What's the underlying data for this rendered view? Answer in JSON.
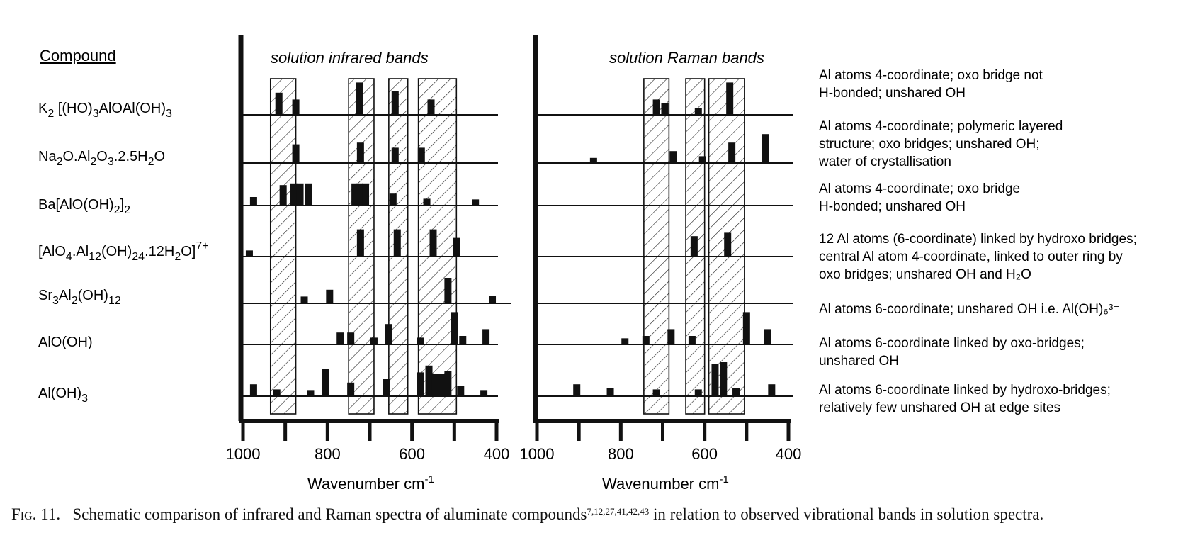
{
  "figure": {
    "compound_header": "Compound",
    "left_panel_title": "solution infrared bands",
    "right_panel_title": "solution Raman bands",
    "x_label_left": "Wavenumber cm",
    "x_label_right": "Wavenumber cm",
    "x_label_sup": "-1",
    "caption_lead": "Fig. 11.",
    "caption_body": "Schematic comparison of infrared and Raman spectra of aluminate compounds",
    "caption_refs": "7,12,27,41,42,43",
    "caption_tail": " in relation to observed vibrational bands in solution spectra."
  },
  "compounds": [
    {
      "formula": [
        [
          "K",
          ""
        ],
        [
          "2",
          "sub"
        ],
        [
          " [(HO)",
          ""
        ],
        [
          "3",
          "sub"
        ],
        [
          "AlOAl(OH)",
          ""
        ],
        [
          "3",
          "sub"
        ]
      ],
      "description": [
        "Al atoms 4-coordinate; oxo bridge not",
        "H-bonded; unshared OH"
      ]
    },
    {
      "formula": [
        [
          "Na",
          ""
        ],
        [
          "2",
          "sub"
        ],
        [
          "O.Al",
          ""
        ],
        [
          "2",
          "sub"
        ],
        [
          "O",
          ""
        ],
        [
          "3",
          "sub"
        ],
        [
          ".2.5H",
          ""
        ],
        [
          "2",
          "sub"
        ],
        [
          "O",
          ""
        ]
      ],
      "description": [
        "Al atoms 4-coordinate; polymeric layered",
        "structure; oxo bridges; unshared OH;",
        "water of crystallisation"
      ]
    },
    {
      "formula": [
        [
          "Ba[AlO(OH)",
          ""
        ],
        [
          "2",
          "sub"
        ],
        [
          "]",
          ""
        ],
        [
          "2",
          "sub"
        ]
      ],
      "description": [
        "Al atoms 4-coordinate; oxo bridge",
        "H-bonded; unshared OH"
      ]
    },
    {
      "formula": [
        [
          "[AlO",
          ""
        ],
        [
          "4",
          "sub"
        ],
        [
          ".Al",
          ""
        ],
        [
          "12",
          "sub"
        ],
        [
          "(OH)",
          ""
        ],
        [
          "24",
          "sub"
        ],
        [
          ".12H",
          ""
        ],
        [
          "2",
          "sub"
        ],
        [
          "O]",
          ""
        ],
        [
          "7+",
          "sup"
        ]
      ],
      "description": [
        "12 Al atoms (6-coordinate) linked by hydroxo bridges;",
        "central Al atom 4-coordinate, linked to outer ring by",
        "oxo bridges; unshared OH and H₂O"
      ]
    },
    {
      "formula": [
        [
          "Sr",
          ""
        ],
        [
          "3",
          "sub"
        ],
        [
          "Al",
          ""
        ],
        [
          "2",
          "sub"
        ],
        [
          "(OH)",
          ""
        ],
        [
          "12",
          "sub"
        ]
      ],
      "description": [
        "Al atoms 6-coordinate; unshared OH i.e. Al(OH)₆³⁻"
      ]
    },
    {
      "formula": [
        [
          "AlO(OH)",
          ""
        ]
      ],
      "description": [
        "Al atoms 6-coordinate linked by oxo-bridges;",
        "unshared OH"
      ]
    },
    {
      "formula": [
        [
          "Al(OH)",
          ""
        ],
        [
          "3",
          "sub"
        ]
      ],
      "description": [
        "Al atoms 6-coordinate linked by hydroxo-bridges;",
        "relatively few unshared OH at edge sites"
      ]
    }
  ],
  "chart_data": [
    {
      "type": "bar",
      "title": "solution infrared bands",
      "xlabel": "Wavenumber cm-1",
      "xlim": [
        1000,
        400
      ],
      "xticks": [
        1000,
        800,
        600,
        400
      ],
      "value_units": "relative intensity (0-1)",
      "hatched_bands": [
        [
          935,
          875
        ],
        [
          750,
          690
        ],
        [
          655,
          610
        ],
        [
          585,
          495
        ]
      ],
      "series": [
        {
          "name": "K2 [(HO)3AlOAl(OH)3]",
          "bands": [
            [
              915,
              0.65
            ],
            [
              875,
              0.45
            ],
            [
              725,
              0.95
            ],
            [
              640,
              0.7
            ],
            [
              555,
              0.45
            ]
          ]
        },
        {
          "name": "Na2O.Al2O3.2.5H2O",
          "bands": [
            [
              875,
              0.55
            ],
            [
              722,
              0.6
            ],
            [
              640,
              0.45
            ],
            [
              578,
              0.45
            ]
          ]
        },
        {
          "name": "Ba[AlO(OH)2]2",
          "bands": [
            [
              975,
              0.25
            ],
            [
              905,
              0.6
            ],
            [
              880,
              0.65
            ],
            [
              865,
              0.65
            ],
            [
              845,
              0.65
            ],
            [
              735,
              0.65
            ],
            [
              725,
              0.65
            ],
            [
              710,
              0.65
            ],
            [
              645,
              0.35
            ],
            [
              565,
              0.2
            ],
            [
              450,
              0.18
            ]
          ]
        },
        {
          "name": "[AlO4.Al12(OH)24.12H2O]7+",
          "bands": [
            [
              985,
              0.18
            ],
            [
              722,
              0.8
            ],
            [
              635,
              0.8
            ],
            [
              550,
              0.8
            ],
            [
              495,
              0.55
            ]
          ]
        },
        {
          "name": "Sr3Al2(OH)12",
          "bands": [
            [
              855,
              0.2
            ],
            [
              795,
              0.4
            ],
            [
              515,
              0.75
            ],
            [
              410,
              0.22
            ]
          ]
        },
        {
          "name": "AlO(OH)",
          "bands": [
            [
              770,
              0.35
            ],
            [
              745,
              0.35
            ],
            [
              690,
              0.2
            ],
            [
              655,
              0.6
            ],
            [
              580,
              0.2
            ],
            [
              500,
              0.95
            ],
            [
              480,
              0.25
            ],
            [
              425,
              0.45
            ]
          ]
        },
        {
          "name": "Al(OH)3",
          "bands": [
            [
              975,
              0.35
            ],
            [
              920,
              0.2
            ],
            [
              840,
              0.18
            ],
            [
              805,
              0.8
            ],
            [
              745,
              0.4
            ],
            [
              660,
              0.5
            ],
            [
              580,
              0.7
            ],
            [
              560,
              0.9
            ],
            [
              545,
              0.65
            ],
            [
              530,
              0.65
            ],
            [
              515,
              0.75
            ],
            [
              485,
              0.3
            ],
            [
              430,
              0.18
            ]
          ]
        }
      ]
    },
    {
      "type": "bar",
      "title": "solution Raman bands",
      "xlabel": "Wavenumber cm-1",
      "xlim": [
        1000,
        400
      ],
      "xticks": [
        1000,
        800,
        600,
        400
      ],
      "value_units": "relative intensity (0-1)",
      "hatched_bands": [
        [
          745,
          685
        ],
        [
          645,
          600
        ],
        [
          590,
          505
        ]
      ],
      "series": [
        {
          "name": "K2 [(HO)3AlOAl(OH)3]",
          "bands": [
            [
              715,
              0.45
            ],
            [
              695,
              0.35
            ],
            [
              615,
              0.2
            ],
            [
              540,
              0.95
            ]
          ]
        },
        {
          "name": "Na2O.Al2O3.2.5H2O",
          "bands": [
            [
              865,
              0.15
            ],
            [
              675,
              0.35
            ],
            [
              605,
              0.2
            ],
            [
              535,
              0.6
            ],
            [
              455,
              0.85
            ]
          ]
        },
        {
          "name": "Ba[AlO(OH)2]2",
          "bands": []
        },
        {
          "name": "[AlO4.Al12(OH)24.12H2O]7+",
          "bands": [
            [
              625,
              0.6
            ],
            [
              545,
              0.7
            ]
          ]
        },
        {
          "name": "Sr3Al2(OH)12",
          "bands": []
        },
        {
          "name": "AlO(OH)",
          "bands": [
            [
              790,
              0.18
            ],
            [
              740,
              0.25
            ],
            [
              680,
              0.45
            ],
            [
              630,
              0.25
            ],
            [
              500,
              0.95
            ],
            [
              450,
              0.45
            ]
          ]
        },
        {
          "name": "Al(OH)3",
          "bands": [
            [
              905,
              0.35
            ],
            [
              825,
              0.25
            ],
            [
              715,
              0.2
            ],
            [
              615,
              0.2
            ],
            [
              575,
              0.95
            ],
            [
              555,
              1.0
            ],
            [
              525,
              0.25
            ],
            [
              440,
              0.35
            ]
          ]
        }
      ]
    }
  ]
}
